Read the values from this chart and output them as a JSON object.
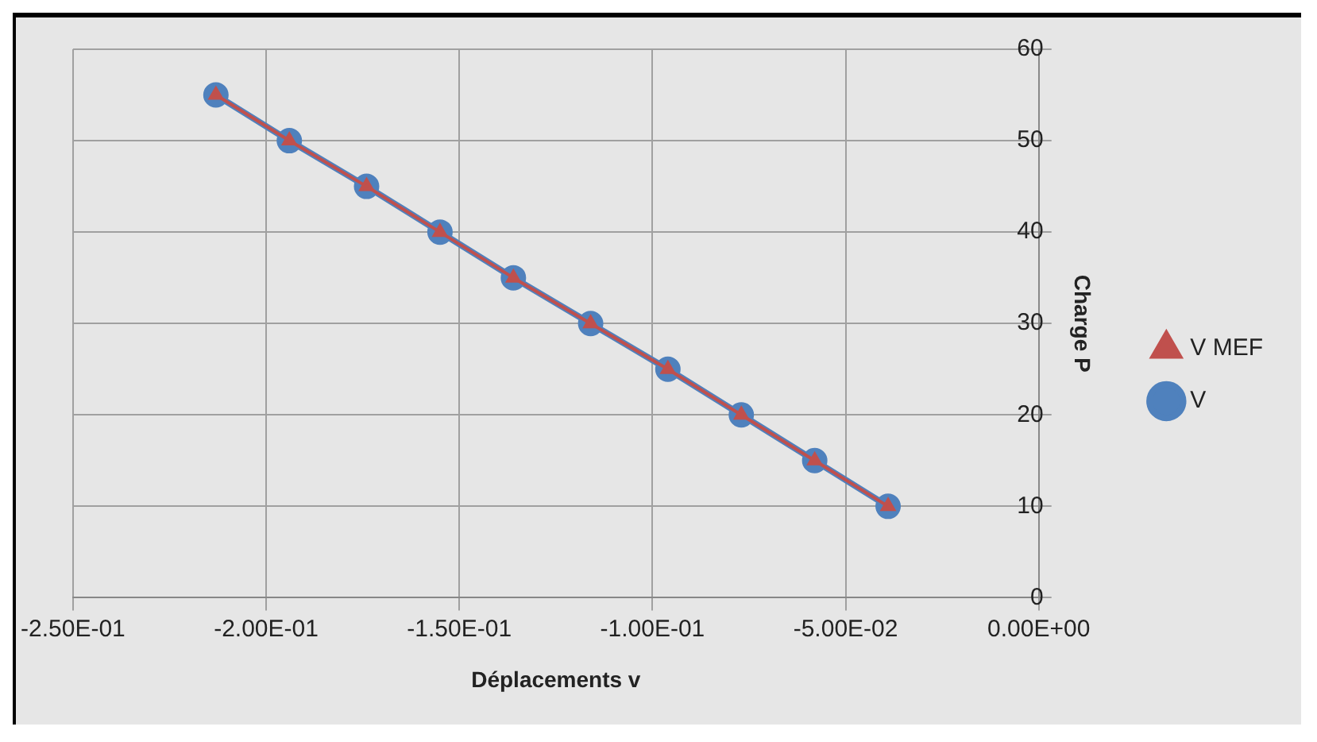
{
  "chart_data": {
    "type": "line",
    "xlabel": "Déplacements v",
    "ylabel": "Charge P",
    "xlim": [
      -0.25,
      0
    ],
    "xticks": [
      {
        "value": -0.25,
        "label": "-2.50E-01"
      },
      {
        "value": -0.2,
        "label": "-2.00E-01"
      },
      {
        "value": -0.15,
        "label": "-1.50E-01"
      },
      {
        "value": -0.1,
        "label": "-1.00E-01"
      },
      {
        "value": -0.05,
        "label": "-5.00E-02"
      },
      {
        "value": 0,
        "label": "0.00E+00"
      }
    ],
    "ylim": [
      0,
      60
    ],
    "yticks": [
      0,
      10,
      20,
      30,
      40,
      50,
      60
    ],
    "grid": true,
    "legend": "right",
    "series": [
      {
        "name": "V",
        "color": "#4f81bd",
        "marker": "circle",
        "x": [
          -0.039,
          -0.058,
          -0.077,
          -0.096,
          -0.116,
          -0.136,
          -0.155,
          -0.174,
          -0.194,
          -0.213
        ],
        "values": [
          10,
          15,
          20,
          25,
          30,
          35,
          40,
          45,
          50,
          55
        ]
      },
      {
        "name": "V MEF",
        "color": "#c0504d",
        "marker": "triangle",
        "x": [
          -0.039,
          -0.058,
          -0.077,
          -0.096,
          -0.116,
          -0.136,
          -0.155,
          -0.174,
          -0.194,
          -0.213
        ],
        "values": [
          10,
          15,
          20,
          25,
          30,
          35,
          40,
          45,
          50,
          55
        ]
      }
    ]
  }
}
